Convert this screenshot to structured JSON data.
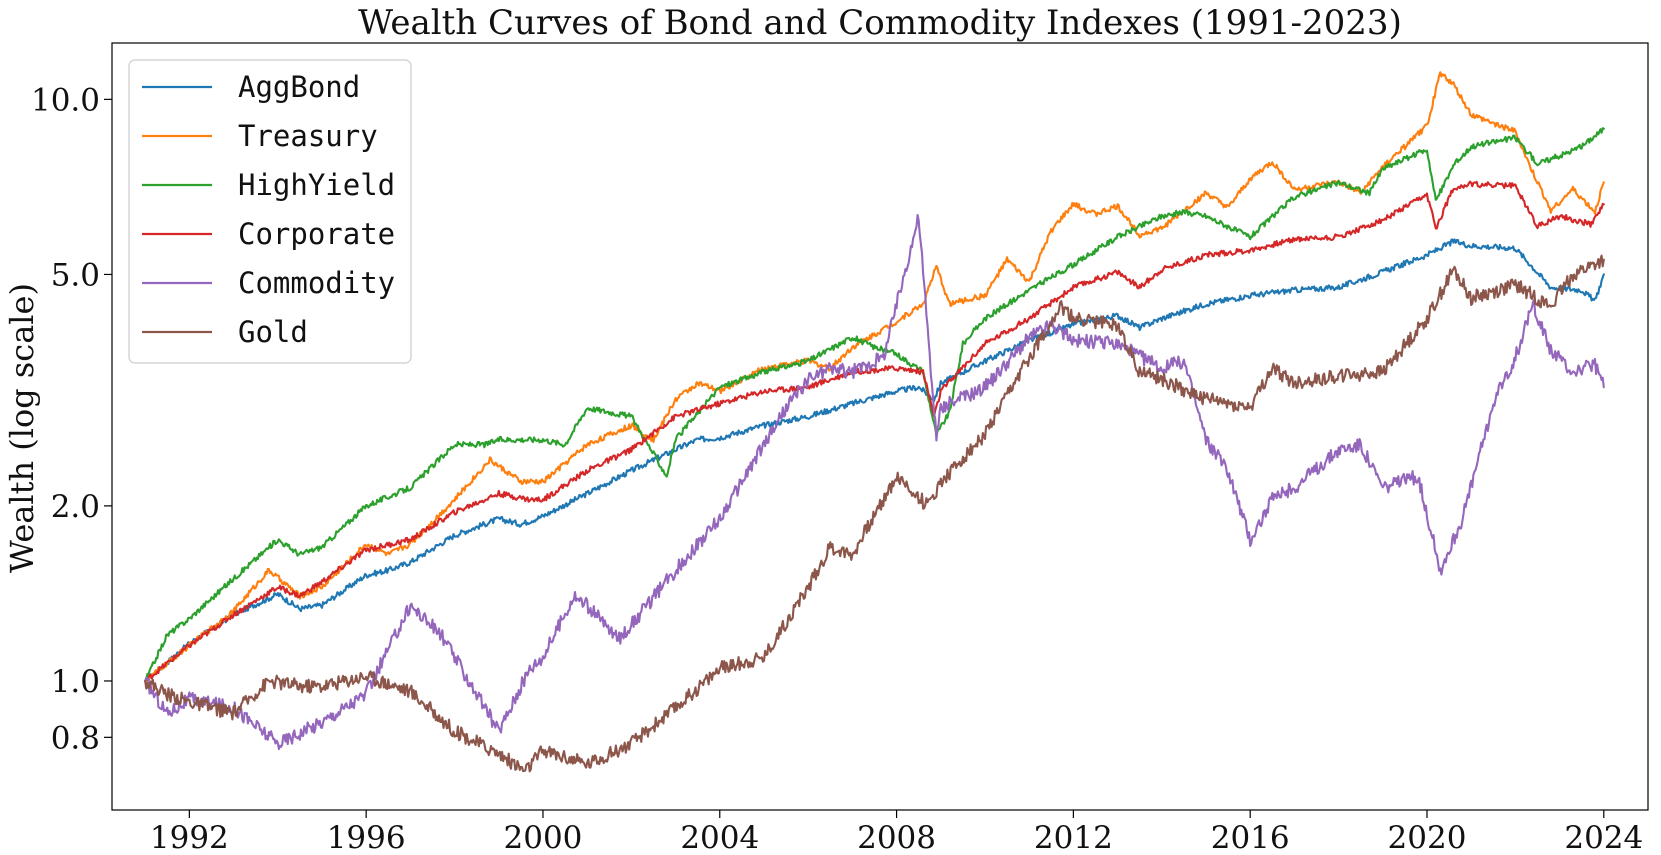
{
  "chart_data": {
    "type": "line",
    "title": "Wealth Curves of Bond and Commodity Indexes (1991-2023)",
    "xlabel": "",
    "ylabel": "Wealth (log scale)",
    "yscale": "log",
    "xlim": [
      1990.25,
      2025.0
    ],
    "ylim": [
      0.6,
      12.5
    ],
    "grid": false,
    "legend_position": "top-left",
    "x_ticks": [
      1992,
      1996,
      2000,
      2004,
      2008,
      2012,
      2016,
      2020,
      2024
    ],
    "y_ticks": [
      {
        "value": 0.8,
        "label": "0.8"
      },
      {
        "value": 1.0,
        "label": "1.0"
      },
      {
        "value": 2.0,
        "label": "2.0"
      },
      {
        "value": 5.0,
        "label": "5.0"
      },
      {
        "value": 10.0,
        "label": "10.0"
      }
    ],
    "series": [
      {
        "name": "AggBond",
        "color": "#1f77b4",
        "points": [
          [
            1991.0,
            1.0
          ],
          [
            1992.0,
            1.16
          ],
          [
            1993.0,
            1.3
          ],
          [
            1994.0,
            1.41
          ],
          [
            1994.5,
            1.33
          ],
          [
            1995.0,
            1.35
          ],
          [
            1996.0,
            1.52
          ],
          [
            1996.5,
            1.55
          ],
          [
            1997.0,
            1.6
          ],
          [
            1998.0,
            1.78
          ],
          [
            1999.0,
            1.9
          ],
          [
            1999.5,
            1.86
          ],
          [
            2000.0,
            1.92
          ],
          [
            2001.0,
            2.1
          ],
          [
            2002.0,
            2.3
          ],
          [
            2003.0,
            2.5
          ],
          [
            2003.5,
            2.6
          ],
          [
            2004.0,
            2.62
          ],
          [
            2005.0,
            2.75
          ],
          [
            2006.0,
            2.85
          ],
          [
            2007.0,
            3.0
          ],
          [
            2008.0,
            3.15
          ],
          [
            2008.5,
            3.2
          ],
          [
            2008.85,
            3.05
          ],
          [
            2009.0,
            3.25
          ],
          [
            2010.0,
            3.55
          ],
          [
            2011.0,
            3.85
          ],
          [
            2012.0,
            4.1
          ],
          [
            2013.0,
            4.25
          ],
          [
            2013.5,
            4.05
          ],
          [
            2014.0,
            4.2
          ],
          [
            2015.0,
            4.45
          ],
          [
            2016.0,
            4.6
          ],
          [
            2017.0,
            4.7
          ],
          [
            2018.0,
            4.75
          ],
          [
            2019.0,
            5.05
          ],
          [
            2020.0,
            5.4
          ],
          [
            2020.6,
            5.7
          ],
          [
            2021.0,
            5.6
          ],
          [
            2022.0,
            5.55
          ],
          [
            2022.8,
            4.75
          ],
          [
            2023.5,
            4.7
          ],
          [
            2023.8,
            4.5
          ],
          [
            2024.0,
            5.0
          ]
        ]
      },
      {
        "name": "Treasury",
        "color": "#ff7f0e",
        "points": [
          [
            1991.0,
            1.0
          ],
          [
            1992.0,
            1.15
          ],
          [
            1993.0,
            1.32
          ],
          [
            1993.8,
            1.55
          ],
          [
            1994.5,
            1.4
          ],
          [
            1995.0,
            1.45
          ],
          [
            1996.0,
            1.72
          ],
          [
            1996.5,
            1.65
          ],
          [
            1997.0,
            1.72
          ],
          [
            1998.0,
            2.05
          ],
          [
            1998.8,
            2.4
          ],
          [
            1999.5,
            2.2
          ],
          [
            2000.0,
            2.2
          ],
          [
            2001.0,
            2.55
          ],
          [
            2002.0,
            2.75
          ],
          [
            2002.5,
            2.6
          ],
          [
            2003.0,
            3.05
          ],
          [
            2003.5,
            3.25
          ],
          [
            2004.0,
            3.15
          ],
          [
            2005.0,
            3.45
          ],
          [
            2006.0,
            3.55
          ],
          [
            2006.5,
            3.45
          ],
          [
            2007.0,
            3.75
          ],
          [
            2008.0,
            4.15
          ],
          [
            2008.6,
            4.45
          ],
          [
            2008.9,
            5.15
          ],
          [
            2009.2,
            4.45
          ],
          [
            2010.0,
            4.6
          ],
          [
            2010.5,
            5.3
          ],
          [
            2011.0,
            4.85
          ],
          [
            2011.5,
            5.95
          ],
          [
            2012.0,
            6.6
          ],
          [
            2012.5,
            6.35
          ],
          [
            2013.0,
            6.55
          ],
          [
            2013.5,
            5.85
          ],
          [
            2014.0,
            6.0
          ],
          [
            2015.0,
            6.9
          ],
          [
            2015.5,
            6.5
          ],
          [
            2016.0,
            7.3
          ],
          [
            2016.5,
            7.8
          ],
          [
            2017.0,
            7.0
          ],
          [
            2018.0,
            7.2
          ],
          [
            2018.5,
            6.9
          ],
          [
            2019.0,
            7.65
          ],
          [
            2020.0,
            9.0
          ],
          [
            2020.3,
            11.1
          ],
          [
            2020.6,
            10.6
          ],
          [
            2021.0,
            9.4
          ],
          [
            2022.0,
            8.8
          ],
          [
            2022.3,
            7.75
          ],
          [
            2022.8,
            6.45
          ],
          [
            2023.3,
            7.0
          ],
          [
            2023.8,
            6.4
          ],
          [
            2024.0,
            7.2
          ]
        ]
      },
      {
        "name": "HighYield",
        "color": "#2ca02c",
        "points": [
          [
            1991.0,
            1.0
          ],
          [
            1991.5,
            1.2
          ],
          [
            1992.0,
            1.28
          ],
          [
            1993.0,
            1.5
          ],
          [
            1994.0,
            1.75
          ],
          [
            1994.5,
            1.65
          ],
          [
            1995.0,
            1.7
          ],
          [
            1996.0,
            2.0
          ],
          [
            1997.0,
            2.15
          ],
          [
            1998.0,
            2.55
          ],
          [
            1998.7,
            2.55
          ],
          [
            1999.0,
            2.6
          ],
          [
            2000.0,
            2.6
          ],
          [
            2000.5,
            2.55
          ],
          [
            2001.0,
            2.95
          ],
          [
            2002.0,
            2.85
          ],
          [
            2002.8,
            2.25
          ],
          [
            2003.0,
            2.6
          ],
          [
            2004.0,
            3.2
          ],
          [
            2005.0,
            3.4
          ],
          [
            2006.0,
            3.55
          ],
          [
            2007.0,
            3.9
          ],
          [
            2007.5,
            3.75
          ],
          [
            2008.0,
            3.65
          ],
          [
            2008.6,
            3.4
          ],
          [
            2008.9,
            2.65
          ],
          [
            2009.2,
            2.9
          ],
          [
            2009.5,
            3.8
          ],
          [
            2010.0,
            4.2
          ],
          [
            2011.0,
            4.7
          ],
          [
            2012.0,
            5.2
          ],
          [
            2013.0,
            5.8
          ],
          [
            2014.0,
            6.3
          ],
          [
            2014.5,
            6.4
          ],
          [
            2015.0,
            6.3
          ],
          [
            2016.0,
            5.8
          ],
          [
            2017.0,
            6.8
          ],
          [
            2018.0,
            7.2
          ],
          [
            2018.7,
            6.9
          ],
          [
            2019.0,
            7.6
          ],
          [
            2020.0,
            8.2
          ],
          [
            2020.2,
            6.7
          ],
          [
            2020.6,
            7.7
          ],
          [
            2021.0,
            8.3
          ],
          [
            2022.0,
            8.6
          ],
          [
            2022.5,
            7.75
          ],
          [
            2023.0,
            8.0
          ],
          [
            2023.5,
            8.3
          ],
          [
            2024.0,
            8.9
          ]
        ]
      },
      {
        "name": "Corporate",
        "color": "#d62728",
        "points": [
          [
            1991.0,
            1.0
          ],
          [
            1992.0,
            1.15
          ],
          [
            1993.0,
            1.3
          ],
          [
            1994.0,
            1.45
          ],
          [
            1994.5,
            1.4
          ],
          [
            1995.0,
            1.48
          ],
          [
            1996.0,
            1.68
          ],
          [
            1997.0,
            1.75
          ],
          [
            1998.0,
            1.95
          ],
          [
            1999.0,
            2.1
          ],
          [
            1999.7,
            2.05
          ],
          [
            2000.0,
            2.05
          ],
          [
            2001.0,
            2.3
          ],
          [
            2002.0,
            2.5
          ],
          [
            2003.0,
            2.85
          ],
          [
            2004.0,
            3.0
          ],
          [
            2005.0,
            3.15
          ],
          [
            2006.0,
            3.2
          ],
          [
            2007.0,
            3.4
          ],
          [
            2008.0,
            3.45
          ],
          [
            2008.6,
            3.4
          ],
          [
            2008.85,
            2.85
          ],
          [
            2009.0,
            3.15
          ],
          [
            2010.0,
            3.8
          ],
          [
            2011.0,
            4.2
          ],
          [
            2012.0,
            4.75
          ],
          [
            2013.0,
            5.05
          ],
          [
            2013.5,
            4.75
          ],
          [
            2014.0,
            5.1
          ],
          [
            2015.0,
            5.4
          ],
          [
            2016.0,
            5.5
          ],
          [
            2017.0,
            5.75
          ],
          [
            2018.0,
            5.8
          ],
          [
            2019.0,
            6.2
          ],
          [
            2020.0,
            6.85
          ],
          [
            2020.2,
            6.0
          ],
          [
            2020.6,
            7.05
          ],
          [
            2021.0,
            7.15
          ],
          [
            2022.0,
            7.1
          ],
          [
            2022.5,
            6.05
          ],
          [
            2023.0,
            6.3
          ],
          [
            2023.7,
            6.1
          ],
          [
            2024.0,
            6.6
          ]
        ]
      },
      {
        "name": "Commodity",
        "color": "#9467bd",
        "points": [
          [
            1991.0,
            1.0
          ],
          [
            1991.5,
            0.88
          ],
          [
            1992.0,
            0.93
          ],
          [
            1993.0,
            0.9
          ],
          [
            1994.0,
            0.78
          ],
          [
            1995.0,
            0.85
          ],
          [
            1996.0,
            0.95
          ],
          [
            1997.0,
            1.35
          ],
          [
            1997.7,
            1.2
          ],
          [
            1998.5,
            0.95
          ],
          [
            1999.0,
            0.82
          ],
          [
            1999.7,
            1.05
          ],
          [
            2000.0,
            1.1
          ],
          [
            2000.7,
            1.4
          ],
          [
            2001.0,
            1.35
          ],
          [
            2001.7,
            1.18
          ],
          [
            2002.0,
            1.25
          ],
          [
            2003.0,
            1.55
          ],
          [
            2004.0,
            1.9
          ],
          [
            2005.0,
            2.55
          ],
          [
            2005.5,
            2.95
          ],
          [
            2006.0,
            3.3
          ],
          [
            2006.5,
            3.45
          ],
          [
            2007.0,
            3.4
          ],
          [
            2007.7,
            3.6
          ],
          [
            2008.5,
            6.3
          ],
          [
            2008.9,
            2.6
          ],
          [
            2009.0,
            2.95
          ],
          [
            2010.0,
            3.2
          ],
          [
            2011.0,
            3.9
          ],
          [
            2011.5,
            4.1
          ],
          [
            2012.0,
            3.85
          ],
          [
            2013.0,
            3.8
          ],
          [
            2014.0,
            3.45
          ],
          [
            2014.5,
            3.55
          ],
          [
            2015.0,
            2.6
          ],
          [
            2015.5,
            2.3
          ],
          [
            2016.0,
            1.75
          ],
          [
            2016.5,
            2.05
          ],
          [
            2017.0,
            2.15
          ],
          [
            2018.0,
            2.5
          ],
          [
            2018.5,
            2.55
          ],
          [
            2019.0,
            2.15
          ],
          [
            2019.8,
            2.25
          ],
          [
            2020.3,
            1.55
          ],
          [
            2020.8,
            1.9
          ],
          [
            2021.5,
            3.0
          ],
          [
            2022.0,
            3.6
          ],
          [
            2022.4,
            4.45
          ],
          [
            2022.8,
            3.7
          ],
          [
            2023.3,
            3.4
          ],
          [
            2023.8,
            3.5
          ],
          [
            2024.0,
            3.2
          ]
        ]
      },
      {
        "name": "Gold",
        "color": "#8c564b",
        "points": [
          [
            1991.0,
            1.0
          ],
          [
            1991.5,
            0.95
          ],
          [
            1992.0,
            0.92
          ],
          [
            1993.0,
            0.88
          ],
          [
            1993.8,
            1.0
          ],
          [
            1994.5,
            0.98
          ],
          [
            1995.0,
            0.98
          ],
          [
            1996.0,
            1.02
          ],
          [
            1997.0,
            0.96
          ],
          [
            1998.0,
            0.82
          ],
          [
            1999.0,
            0.75
          ],
          [
            1999.6,
            0.7
          ],
          [
            2000.0,
            0.76
          ],
          [
            2001.0,
            0.72
          ],
          [
            2002.0,
            0.78
          ],
          [
            2003.0,
            0.9
          ],
          [
            2004.0,
            1.05
          ],
          [
            2005.0,
            1.1
          ],
          [
            2006.0,
            1.45
          ],
          [
            2006.5,
            1.7
          ],
          [
            2007.0,
            1.65
          ],
          [
            2008.0,
            2.25
          ],
          [
            2008.7,
            2.0
          ],
          [
            2009.0,
            2.2
          ],
          [
            2010.0,
            2.65
          ],
          [
            2011.0,
            3.6
          ],
          [
            2011.7,
            4.4
          ],
          [
            2012.0,
            4.2
          ],
          [
            2013.0,
            4.1
          ],
          [
            2013.5,
            3.4
          ],
          [
            2014.0,
            3.3
          ],
          [
            2015.0,
            3.05
          ],
          [
            2016.0,
            2.95
          ],
          [
            2016.5,
            3.45
          ],
          [
            2017.0,
            3.25
          ],
          [
            2018.0,
            3.35
          ],
          [
            2019.0,
            3.4
          ],
          [
            2020.0,
            4.2
          ],
          [
            2020.6,
            5.1
          ],
          [
            2021.0,
            4.55
          ],
          [
            2022.0,
            4.8
          ],
          [
            2022.8,
            4.4
          ],
          [
            2023.3,
            5.0
          ],
          [
            2024.0,
            5.3
          ]
        ]
      }
    ]
  }
}
